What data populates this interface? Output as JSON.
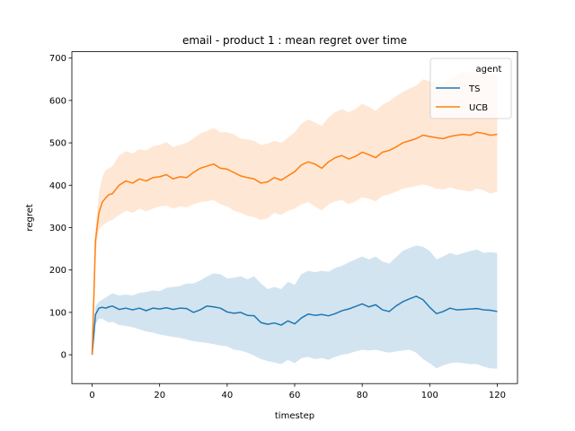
{
  "chart_data": {
    "type": "line",
    "title": "email - product 1 : mean regret over time",
    "xlabel": "timestep",
    "ylabel": "regret",
    "xlim": [
      -6,
      126
    ],
    "ylim": [
      -68,
      715
    ],
    "xticks": [
      0,
      20,
      40,
      60,
      80,
      100,
      120
    ],
    "yticks": [
      0,
      100,
      200,
      300,
      400,
      500,
      600,
      700
    ],
    "grid": false,
    "legend": {
      "title": "agent",
      "placement": "top-right"
    },
    "x": [
      0,
      1,
      2,
      3,
      4,
      5,
      6,
      8,
      10,
      12,
      14,
      16,
      18,
      20,
      22,
      24,
      26,
      28,
      30,
      32,
      34,
      36,
      38,
      40,
      42,
      44,
      46,
      48,
      50,
      52,
      54,
      56,
      58,
      60,
      62,
      64,
      66,
      68,
      70,
      72,
      74,
      76,
      78,
      80,
      82,
      84,
      86,
      88,
      90,
      92,
      94,
      96,
      98,
      100,
      102,
      104,
      106,
      108,
      110,
      112,
      114,
      116,
      118,
      120
    ],
    "series": [
      {
        "name": "TS",
        "color": "#1f77b4",
        "band_color": "#1f77b4",
        "mean": [
          0,
          95,
          110,
          112,
          110,
          113,
          115,
          107,
          110,
          106,
          110,
          104,
          110,
          108,
          111,
          107,
          110,
          109,
          100,
          106,
          115,
          113,
          110,
          101,
          98,
          100,
          93,
          92,
          76,
          72,
          75,
          70,
          80,
          73,
          87,
          96,
          93,
          95,
          92,
          97,
          104,
          108,
          114,
          120,
          113,
          118,
          106,
          102,
          115,
          125,
          132,
          138,
          130,
          112,
          97,
          102,
          110,
          106,
          107,
          108,
          109,
          106,
          105,
          102
        ],
        "lower": [
          0,
          72,
          85,
          85,
          80,
          76,
          78,
          70,
          68,
          65,
          60,
          55,
          52,
          48,
          45,
          42,
          40,
          36,
          32,
          30,
          28,
          25,
          22,
          20,
          12,
          10,
          5,
          -2,
          -10,
          -15,
          -18,
          -22,
          -12,
          -20,
          -8,
          -5,
          -10,
          -8,
          -12,
          -5,
          0,
          3,
          8,
          12,
          10,
          12,
          8,
          5,
          8,
          10,
          12,
          5,
          -10,
          -20,
          -32,
          -25,
          -20,
          -18,
          -20,
          -22,
          -22,
          -28,
          -32,
          -33
        ],
        "upper": [
          0,
          115,
          125,
          130,
          135,
          140,
          145,
          140,
          142,
          140,
          146,
          148,
          152,
          150,
          158,
          160,
          162,
          168,
          168,
          175,
          185,
          192,
          190,
          180,
          182,
          185,
          178,
          185,
          168,
          155,
          160,
          155,
          172,
          165,
          190,
          198,
          195,
          198,
          196,
          205,
          210,
          218,
          225,
          232,
          225,
          232,
          220,
          215,
          230,
          245,
          252,
          258,
          255,
          245,
          225,
          232,
          240,
          235,
          240,
          245,
          248,
          240,
          242,
          240
        ]
      },
      {
        "name": "UCB",
        "color": "#ff7f0e",
        "band_color": "#ffbb88",
        "mean": [
          0,
          270,
          335,
          360,
          370,
          378,
          380,
          400,
          410,
          405,
          415,
          410,
          418,
          420,
          425,
          415,
          420,
          418,
          430,
          440,
          445,
          450,
          440,
          438,
          430,
          422,
          418,
          415,
          405,
          408,
          418,
          412,
          422,
          432,
          448,
          455,
          450,
          440,
          455,
          465,
          470,
          462,
          468,
          478,
          472,
          465,
          478,
          482,
          490,
          500,
          505,
          510,
          518,
          515,
          512,
          510,
          515,
          518,
          520,
          518,
          525,
          522,
          518,
          520
        ],
        "lower": [
          0,
          240,
          295,
          305,
          310,
          315,
          318,
          330,
          340,
          335,
          345,
          338,
          345,
          350,
          352,
          345,
          350,
          348,
          355,
          360,
          362,
          365,
          355,
          350,
          340,
          335,
          328,
          325,
          318,
          322,
          335,
          330,
          340,
          345,
          355,
          360,
          350,
          340,
          355,
          362,
          365,
          355,
          362,
          372,
          368,
          362,
          375,
          378,
          385,
          392,
          395,
          398,
          402,
          398,
          392,
          390,
          395,
          390,
          388,
          385,
          392,
          388,
          380,
          385
        ],
        "upper": [
          0,
          300,
          380,
          420,
          435,
          440,
          445,
          470,
          480,
          475,
          485,
          482,
          492,
          495,
          502,
          490,
          495,
          500,
          510,
          522,
          528,
          535,
          525,
          525,
          520,
          510,
          508,
          505,
          495,
          498,
          505,
          500,
          512,
          525,
          545,
          555,
          548,
          540,
          560,
          572,
          580,
          572,
          580,
          592,
          585,
          575,
          590,
          598,
          610,
          620,
          628,
          635,
          650,
          645,
          640,
          640,
          652,
          660,
          668,
          665,
          670,
          668,
          662,
          660
        ]
      }
    ]
  }
}
